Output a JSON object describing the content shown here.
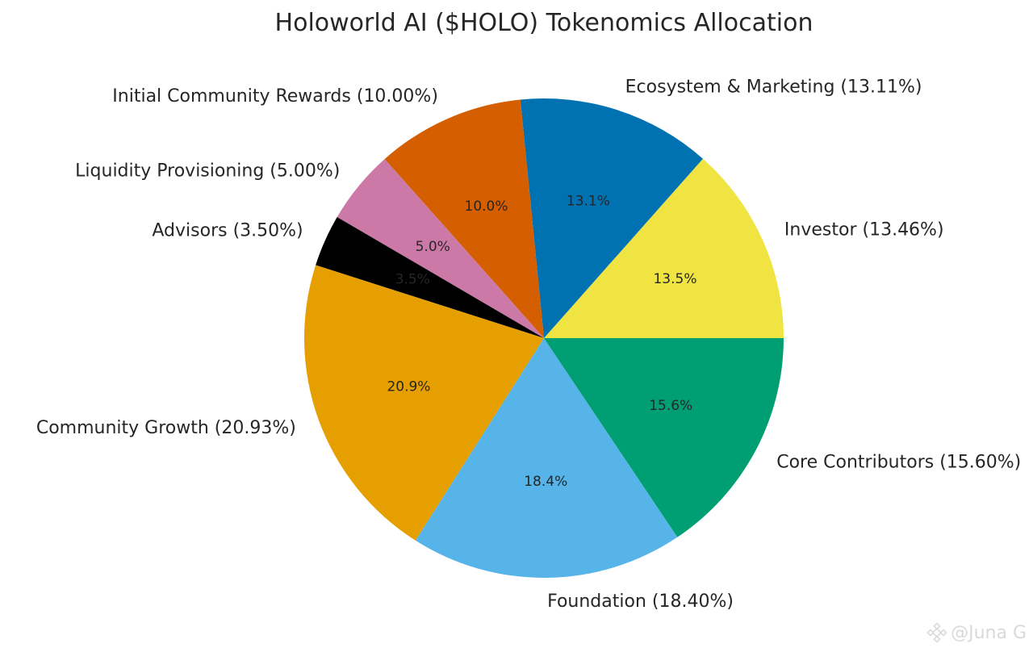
{
  "chart_data": {
    "type": "pie",
    "title": "Holoworld AI ($HOLO) Tokenomics Allocation",
    "start_angle_deg": 0,
    "direction": "counterclockwise",
    "slices": [
      {
        "name": "Investor",
        "value": 13.46,
        "label": "Investor (13.46%)",
        "pct": "13.5%",
        "color": "#F0E442"
      },
      {
        "name": "Ecosystem & Marketing",
        "value": 13.11,
        "label": "Ecosystem & Marketing (13.11%)",
        "pct": "13.1%",
        "color": "#0072B2"
      },
      {
        "name": "Initial Community Rewards",
        "value": 10.0,
        "label": "Initial Community Rewards (10.00%)",
        "pct": "10.0%",
        "color": "#D55E00"
      },
      {
        "name": "Liquidity Provisioning",
        "value": 5.0,
        "label": "Liquidity Provisioning (5.00%)",
        "pct": "5.0%",
        "color": "#CC79A7"
      },
      {
        "name": "Advisors",
        "value": 3.5,
        "label": "Advisors (3.50%)",
        "pct": "3.5%",
        "color": "#000000"
      },
      {
        "name": "Community Growth",
        "value": 20.93,
        "label": "Community Growth (20.93%)",
        "pct": "20.9%",
        "color": "#E69F00"
      },
      {
        "name": "Foundation",
        "value": 18.4,
        "label": "Foundation (18.40%)",
        "pct": "18.4%",
        "color": "#56B4E9"
      },
      {
        "name": "Core Contributors",
        "value": 15.6,
        "label": "Core Contributors (15.60%)",
        "pct": "15.6%",
        "color": "#009E73"
      }
    ]
  },
  "watermark": {
    "text": "@Juna G",
    "icon": "binance-logo-icon"
  }
}
